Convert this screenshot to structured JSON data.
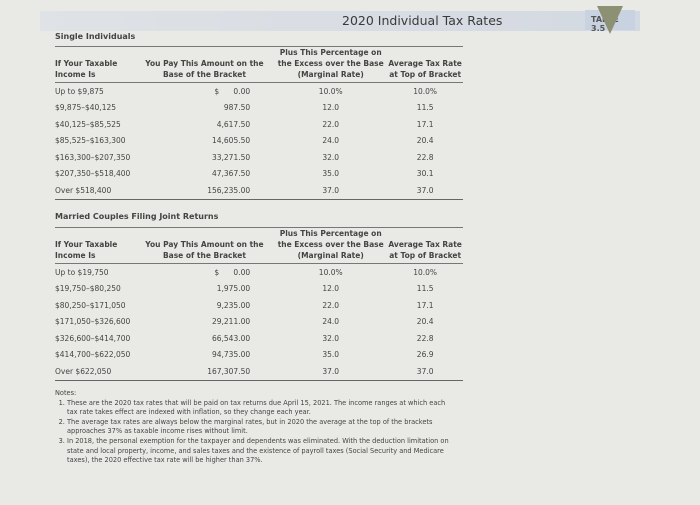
{
  "header": {
    "title": "2020 Individual Tax Rates",
    "table_label": "TABLE 3.5",
    "accent_color": "#8d9174"
  },
  "columns": {
    "single": [
      "If Your Taxable Income Is",
      "You Pay This Amount on the Base of the Bracket",
      "Plus This Percentage on the Excess over the Base (Marginal Rate)",
      "Average Tax Rate at Top of Bracket"
    ],
    "married": [
      "If Your Taxable Income Is",
      "You Pay This Amount on the Base of the Bracket",
      "Plus This Percentage on the Excess over the Base (Marginal Rate)",
      "Average Tax Rate at Top of Bracket"
    ]
  },
  "single": {
    "title": "Single Individuals",
    "rows": [
      [
        "Up to $9,875",
        "$      0.00",
        "10.0%",
        "10.0%"
      ],
      [
        "$9,875–$40,125",
        "987.50",
        "12.0",
        "11.5"
      ],
      [
        "$40,125–$85,525",
        "4,617.50",
        "22.0",
        "17.1"
      ],
      [
        "$85,525–$163,300",
        "14,605.50",
        "24.0",
        "20.4"
      ],
      [
        "$163,300–$207,350",
        "33,271.50",
        "32.0",
        "22.8"
      ],
      [
        "$207,350–$518,400",
        "47,367.50",
        "35.0",
        "30.1"
      ],
      [
        "Over $518,400",
        "156,235.00",
        "37.0",
        "37.0"
      ]
    ]
  },
  "married": {
    "title": "Married Couples Filing Joint Returns",
    "rows": [
      [
        "Up to $19,750",
        "$      0.00",
        "10.0%",
        "10.0%"
      ],
      [
        "$19,750–$80,250",
        "1,975.00",
        "12.0",
        "11.5"
      ],
      [
        "$80,250–$171,050",
        "9,235.00",
        "22.0",
        "17.1"
      ],
      [
        "$171,050–$326,600",
        "29,211.00",
        "24.0",
        "20.4"
      ],
      [
        "$326,600–$414,700",
        "66,543.00",
        "32.0",
        "22.8"
      ],
      [
        "$414,700–$622,050",
        "94,735.00",
        "35.0",
        "26.9"
      ],
      [
        "Over $622,050",
        "167,307.50",
        "37.0",
        "37.0"
      ]
    ]
  },
  "notes": {
    "label": "Notes:",
    "items": [
      "These are the 2020 tax rates that will be paid on tax returns due April 15, 2021. The income ranges at which each tax rate takes effect are indexed with inflation, so they change each year.",
      "The average tax rates are always below the marginal rates, but in 2020 the average at the top of the brackets approaches 37% as taxable income rises without limit.",
      "In 2018, the personal exemption for the taxpayer and dependents was eliminated. With the deduction limitation on state and local property, income, and sales taxes and the existence of payroll taxes (Social Security and Medicare taxes), the 2020 effective tax rate will be higher than 37%."
    ]
  }
}
